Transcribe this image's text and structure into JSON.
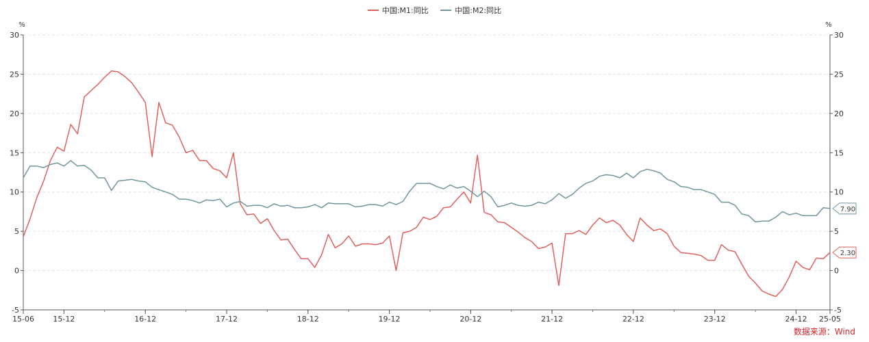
{
  "legend": [
    {
      "label": "中国:M1:同比",
      "color": "#e0605a"
    },
    {
      "label": "中国:M2:同比",
      "color": "#6f959d"
    }
  ],
  "source": "数据来源：Wind",
  "chart_data": {
    "type": "line",
    "title": "",
    "xlabel": "",
    "ylabel_left": "%",
    "ylabel_right": "%",
    "ylim": [
      -5,
      30
    ],
    "yticks": [
      -5,
      0,
      5,
      10,
      15,
      20,
      25,
      30
    ],
    "xtick_labels": [
      "15-06",
      "15-12",
      "16-12",
      "17-12",
      "18-12",
      "19-12",
      "20-12",
      "21-12",
      "22-12",
      "23-12",
      "24-12",
      "25-05"
    ],
    "x_start": "2015-06",
    "x_end": "2025-05",
    "grid": "horizontal dashed",
    "legend_position": "top-center",
    "end_labels": [
      "7.90",
      "2.30"
    ],
    "series": [
      {
        "name": "中国:M1:同比",
        "color": "#e0605a",
        "x": [
          "2015-06",
          "2015-07",
          "2015-08",
          "2015-09",
          "2015-10",
          "2015-11",
          "2015-12",
          "2016-01",
          "2016-02",
          "2016-03",
          "2016-04",
          "2016-05",
          "2016-06",
          "2016-07",
          "2016-08",
          "2016-09",
          "2016-10",
          "2016-11",
          "2016-12",
          "2017-01",
          "2017-02",
          "2017-03",
          "2017-04",
          "2017-05",
          "2017-06",
          "2017-07",
          "2017-08",
          "2017-09",
          "2017-10",
          "2017-11",
          "2017-12",
          "2018-01",
          "2018-02",
          "2018-03",
          "2018-04",
          "2018-05",
          "2018-06",
          "2018-07",
          "2018-08",
          "2018-09",
          "2018-10",
          "2018-11",
          "2018-12",
          "2019-01",
          "2019-02",
          "2019-03",
          "2019-04",
          "2019-05",
          "2019-06",
          "2019-07",
          "2019-08",
          "2019-09",
          "2019-10",
          "2019-11",
          "2019-12",
          "2020-01",
          "2020-02",
          "2020-03",
          "2020-04",
          "2020-05",
          "2020-06",
          "2020-07",
          "2020-08",
          "2020-09",
          "2020-10",
          "2020-11",
          "2020-12",
          "2021-01",
          "2021-02",
          "2021-03",
          "2021-04",
          "2021-05",
          "2021-06",
          "2021-07",
          "2021-08",
          "2021-09",
          "2021-10",
          "2021-11",
          "2021-12",
          "2022-01",
          "2022-02",
          "2022-03",
          "2022-04",
          "2022-05",
          "2022-06",
          "2022-07",
          "2022-08",
          "2022-09",
          "2022-10",
          "2022-11",
          "2022-12",
          "2023-01",
          "2023-02",
          "2023-03",
          "2023-04",
          "2023-05",
          "2023-06",
          "2023-07",
          "2023-08",
          "2023-09",
          "2023-10",
          "2023-11",
          "2023-12",
          "2024-01",
          "2024-02",
          "2024-03",
          "2024-04",
          "2024-05",
          "2024-06",
          "2024-07",
          "2024-08",
          "2024-09",
          "2024-10",
          "2024-11",
          "2024-12",
          "2025-01",
          "2025-02",
          "2025-03",
          "2025-04",
          "2025-05"
        ],
        "values": [
          4.3,
          6.6,
          9.3,
          11.4,
          14.0,
          15.7,
          15.2,
          18.6,
          17.4,
          22.1,
          22.9,
          23.7,
          24.6,
          25.4,
          25.3,
          24.7,
          23.9,
          22.7,
          21.4,
          14.5,
          21.4,
          18.8,
          18.5,
          17.0,
          15.0,
          15.3,
          14.0,
          14.0,
          13.0,
          12.7,
          11.8,
          15.0,
          8.5,
          7.1,
          7.2,
          6.0,
          6.6,
          5.1,
          3.9,
          4.0,
          2.7,
          1.5,
          1.5,
          0.4,
          2.0,
          4.6,
          2.9,
          3.4,
          4.4,
          3.1,
          3.4,
          3.4,
          3.3,
          3.5,
          4.4,
          0.0,
          4.8,
          5.0,
          5.5,
          6.8,
          6.5,
          6.9,
          8.0,
          8.1,
          9.1,
          10.0,
          8.6,
          14.7,
          7.4,
          7.1,
          6.2,
          6.1,
          5.5,
          4.9,
          4.2,
          3.7,
          2.8,
          3.0,
          3.5,
          -1.9,
          4.7,
          4.7,
          5.1,
          4.6,
          5.8,
          6.7,
          6.1,
          6.4,
          5.8,
          4.6,
          3.7,
          6.7,
          5.8,
          5.1,
          5.3,
          4.7,
          3.1,
          2.3,
          2.2,
          2.1,
          1.9,
          1.3,
          1.3,
          3.3,
          2.6,
          2.4,
          0.8,
          -0.7,
          -1.6,
          -2.6,
          -3.0,
          -3.3,
          -2.4,
          -0.8,
          1.2,
          0.4,
          0.1,
          1.6,
          1.5,
          2.3
        ]
      },
      {
        "name": "中国:M2:同比",
        "color": "#6f959d",
        "x": [
          "2015-06",
          "2015-07",
          "2015-08",
          "2015-09",
          "2015-10",
          "2015-11",
          "2015-12",
          "2016-01",
          "2016-02",
          "2016-03",
          "2016-04",
          "2016-05",
          "2016-06",
          "2016-07",
          "2016-08",
          "2016-09",
          "2016-10",
          "2016-11",
          "2016-12",
          "2017-01",
          "2017-02",
          "2017-03",
          "2017-04",
          "2017-05",
          "2017-06",
          "2017-07",
          "2017-08",
          "2017-09",
          "2017-10",
          "2017-11",
          "2017-12",
          "2018-01",
          "2018-02",
          "2018-03",
          "2018-04",
          "2018-05",
          "2018-06",
          "2018-07",
          "2018-08",
          "2018-09",
          "2018-10",
          "2018-11",
          "2018-12",
          "2019-01",
          "2019-02",
          "2019-03",
          "2019-04",
          "2019-05",
          "2019-06",
          "2019-07",
          "2019-08",
          "2019-09",
          "2019-10",
          "2019-11",
          "2019-12",
          "2020-01",
          "2020-02",
          "2020-03",
          "2020-04",
          "2020-05",
          "2020-06",
          "2020-07",
          "2020-08",
          "2020-09",
          "2020-10",
          "2020-11",
          "2020-12",
          "2021-01",
          "2021-02",
          "2021-03",
          "2021-04",
          "2021-05",
          "2021-06",
          "2021-07",
          "2021-08",
          "2021-09",
          "2021-10",
          "2021-11",
          "2021-12",
          "2022-01",
          "2022-02",
          "2022-03",
          "2022-04",
          "2022-05",
          "2022-06",
          "2022-07",
          "2022-08",
          "2022-09",
          "2022-10",
          "2022-11",
          "2022-12",
          "2023-01",
          "2023-02",
          "2023-03",
          "2023-04",
          "2023-05",
          "2023-06",
          "2023-07",
          "2023-08",
          "2023-09",
          "2023-10",
          "2023-11",
          "2023-12",
          "2024-01",
          "2024-02",
          "2024-03",
          "2024-04",
          "2024-05",
          "2024-06",
          "2024-07",
          "2024-08",
          "2024-09",
          "2024-10",
          "2024-11",
          "2024-12",
          "2025-01",
          "2025-02",
          "2025-03",
          "2025-04",
          "2025-05"
        ],
        "values": [
          11.8,
          13.3,
          13.3,
          13.1,
          13.5,
          13.7,
          13.3,
          14.0,
          13.3,
          13.4,
          12.8,
          11.8,
          11.8,
          10.2,
          11.4,
          11.5,
          11.6,
          11.4,
          11.3,
          10.6,
          10.3,
          10.0,
          9.7,
          9.1,
          9.1,
          8.9,
          8.6,
          9.0,
          8.9,
          9.1,
          8.1,
          8.6,
          8.8,
          8.2,
          8.3,
          8.3,
          8.0,
          8.5,
          8.2,
          8.3,
          8.0,
          8.0,
          8.1,
          8.4,
          8.0,
          8.6,
          8.5,
          8.5,
          8.5,
          8.1,
          8.2,
          8.4,
          8.4,
          8.2,
          8.7,
          8.4,
          8.8,
          10.1,
          11.1,
          11.1,
          11.1,
          10.7,
          10.4,
          10.9,
          10.5,
          10.7,
          10.1,
          9.4,
          10.1,
          9.4,
          8.1,
          8.3,
          8.6,
          8.3,
          8.2,
          8.3,
          8.7,
          8.5,
          9.0,
          9.8,
          9.2,
          9.7,
          10.5,
          11.1,
          11.4,
          12.0,
          12.2,
          12.1,
          11.8,
          12.4,
          11.8,
          12.6,
          12.9,
          12.7,
          12.4,
          11.6,
          11.3,
          10.7,
          10.6,
          10.3,
          10.3,
          10.0,
          9.7,
          8.7,
          8.7,
          8.3,
          7.2,
          7.0,
          6.2,
          6.3,
          6.3,
          6.8,
          7.5,
          7.1,
          7.3,
          7.0,
          7.0,
          7.0,
          8.0,
          7.9
        ]
      }
    ]
  }
}
